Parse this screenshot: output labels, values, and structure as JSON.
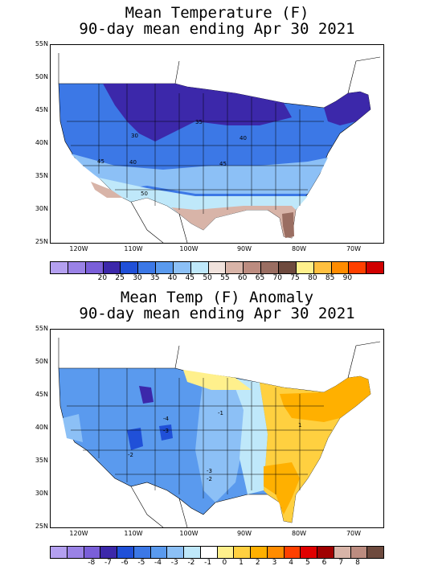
{
  "map1": {
    "title_line1": "Mean Temperature (F)",
    "title_line2": "90-day mean ending Apr 30 2021",
    "lat_labels": [
      "55N",
      "50N",
      "45N",
      "40N",
      "35N",
      "30N",
      "25N"
    ],
    "lon_labels": [
      "120W",
      "110W",
      "100W",
      "90W",
      "80W",
      "70W"
    ],
    "contour_labels": [
      "30",
      "35",
      "40",
      "45",
      "40",
      "45",
      "50"
    ],
    "colorbar_colors": [
      "#b4a0f0",
      "#9a82e6",
      "#7a5fd8",
      "#3c28aa",
      "#2050d8",
      "#3c78e6",
      "#5a9aee",
      "#8cc0f6",
      "#bfe8fa",
      "#f0e2dc",
      "#d8b4a8",
      "#bc8c80",
      "#9a6e62",
      "#6e4a3e",
      "#fff08c",
      "#ffc040",
      "#ff8c00",
      "#ff4000",
      "#d00000"
    ],
    "colorbar_labels": [
      "20",
      "25",
      "30",
      "35",
      "40",
      "45",
      "50",
      "55",
      "60",
      "65",
      "70",
      "75",
      "80",
      "85",
      "90"
    ]
  },
  "map2": {
    "title_line1": "Mean Temp (F) Anomaly",
    "title_line2": "90-day mean ending Apr 30 2021",
    "lat_labels": [
      "55N",
      "50N",
      "45N",
      "40N",
      "35N",
      "30N",
      "25N"
    ],
    "lon_labels": [
      "120W",
      "110W",
      "100W",
      "90W",
      "80W",
      "70W"
    ],
    "contour_labels": [
      "-4",
      "-3",
      "-1",
      "1",
      "-2",
      "-3",
      "-2"
    ],
    "colorbar_colors": [
      "#b4a0f0",
      "#9a82e6",
      "#7a5fd8",
      "#3c28aa",
      "#2050d8",
      "#3c78e6",
      "#5a9aee",
      "#8cc0f6",
      "#bfe8fa",
      "#ffffff",
      "#fff08c",
      "#ffd040",
      "#ffb000",
      "#ff8c00",
      "#ff4000",
      "#e00000",
      "#a00000",
      "#d8b4a8",
      "#bc8c80",
      "#6e4a3e"
    ],
    "colorbar_labels": [
      "-8",
      "-7",
      "-6",
      "-5",
      "-4",
      "-3",
      "-2",
      "-1",
      "0",
      "1",
      "2",
      "3",
      "4",
      "5",
      "6",
      "7",
      "8"
    ]
  }
}
